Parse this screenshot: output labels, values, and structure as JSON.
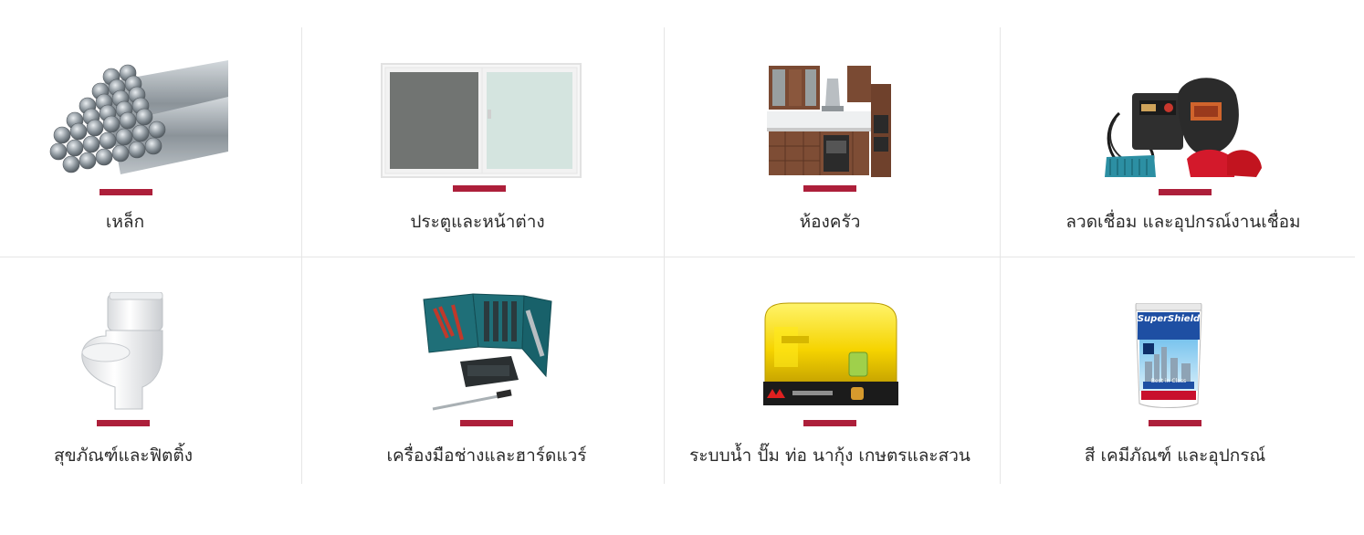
{
  "categories": [
    {
      "label": "เหล็ก",
      "icon": "steel-rebar-image"
    },
    {
      "label": "ประตูและหน้าต่าง",
      "icon": "window-image"
    },
    {
      "label": "ห้องครัว",
      "icon": "kitchen-image"
    },
    {
      "label": "ลวดเชื่อม และอุปกรณ์งานเชื่อม",
      "icon": "welding-equipment-image"
    },
    {
      "label": "สุขภัณฑ์และฟิตติ้ง",
      "icon": "toilet-image"
    },
    {
      "label": "เครื่องมือช่างและฮาร์ดแวร์",
      "icon": "toolkit-image"
    },
    {
      "label": "ระบบน้ำ ปั๊ม ท่อ นากุ้ง เกษตรและสวน",
      "icon": "water-pump-image"
    },
    {
      "label": "สี เคมีภัณฑ์ และอุปกรณ์",
      "icon": "paint-bucket-image"
    }
  ],
  "paint_brand": "SuperShield",
  "paint_tagline": "Best in Class",
  "colors": {
    "accent": "#ad1f3a",
    "divider": "#e6e6e6",
    "text": "#2b2b2b"
  }
}
